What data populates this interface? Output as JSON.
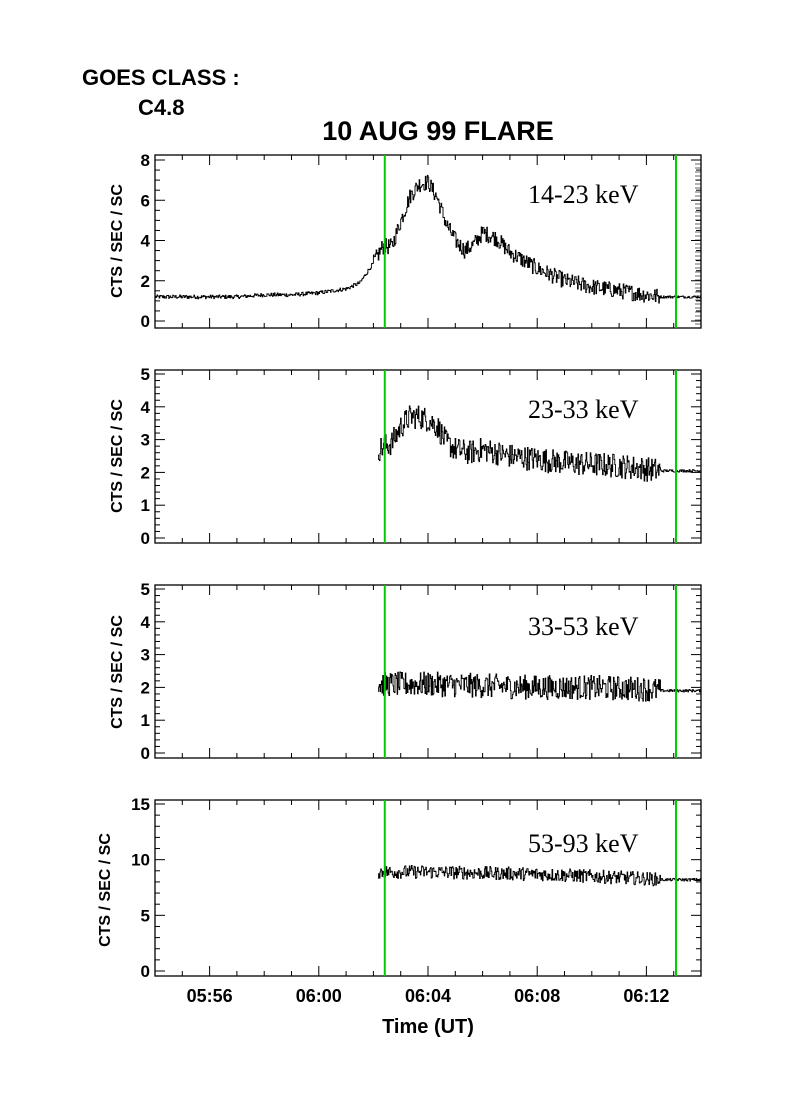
{
  "goes": {
    "label": "GOES CLASS :",
    "value": "C4.8"
  },
  "chart_data": {
    "type": "line",
    "title": "10 AUG 99 FLARE",
    "xlabel": "Time (UT)",
    "x_range": [
      "05:54:00",
      "06:14:00"
    ],
    "x_ticks": [
      "05:56",
      "06:00",
      "06:04",
      "06:08",
      "06:12"
    ],
    "markers": {
      "color": "#00cc00",
      "times": [
        "06:02:25",
        "06:13:05"
      ]
    },
    "panels": [
      {
        "ylabel": "CTS / SEC / SC",
        "ylim": [
          0,
          8
        ],
        "yticks": [
          "0",
          "2",
          "4",
          "6",
          "8"
        ],
        "band": "14-23 keV",
        "series": {
          "x": [
            "05:54:00",
            "05:55:00",
            "05:56:00",
            "05:57:00",
            "05:58:00",
            "05:59:00",
            "06:00:00",
            "06:01:00",
            "06:01:30",
            "06:02:00",
            "06:02:20",
            "06:02:40",
            "06:03:00",
            "06:03:20",
            "06:03:40",
            "06:04:00",
            "06:04:20",
            "06:04:40",
            "06:05:00",
            "06:05:20",
            "06:05:40",
            "06:06:00",
            "06:06:30",
            "06:07:00",
            "06:07:30",
            "06:08:00",
            "06:09:00",
            "06:10:00",
            "06:11:00",
            "06:12:00",
            "06:12:30",
            "06:13:00",
            "06:14:00"
          ],
          "y": [
            1.2,
            1.2,
            1.2,
            1.2,
            1.3,
            1.3,
            1.4,
            1.6,
            1.9,
            2.9,
            3.7,
            3.7,
            5.0,
            6.2,
            6.8,
            6.9,
            6.1,
            4.8,
            4.0,
            3.5,
            3.8,
            4.4,
            4.1,
            3.4,
            3.0,
            2.6,
            2.0,
            1.7,
            1.5,
            1.3,
            1.2,
            1.2,
            1.2
          ]
        }
      },
      {
        "ylabel": "CTS / SEC / SC",
        "ylim": [
          0,
          5
        ],
        "yticks": [
          "0",
          "1",
          "2",
          "3",
          "4",
          "5"
        ],
        "band": "23-33 keV",
        "series": {
          "x": [
            "06:02:10",
            "06:02:40",
            "06:03:00",
            "06:03:20",
            "06:03:40",
            "06:04:00",
            "06:04:20",
            "06:04:40",
            "06:05:00",
            "06:05:30",
            "06:06:00",
            "06:07:00",
            "06:08:00",
            "06:09:00",
            "06:10:00",
            "06:11:00",
            "06:12:00",
            "06:12:30",
            "06:13:00",
            "06:14:00"
          ],
          "y": [
            2.7,
            2.9,
            3.4,
            3.7,
            3.7,
            3.6,
            3.4,
            2.9,
            2.7,
            2.6,
            2.7,
            2.5,
            2.4,
            2.3,
            2.25,
            2.2,
            2.1,
            2.05,
            2.05,
            2.05
          ]
        }
      },
      {
        "ylabel": "CTS / SEC / SC",
        "ylim": [
          0,
          5
        ],
        "yticks": [
          "0",
          "1",
          "2",
          "3",
          "4",
          "5"
        ],
        "band": "33-53 keV",
        "series": {
          "x": [
            "06:02:10",
            "06:04:00",
            "06:06:00",
            "06:08:00",
            "06:10:00",
            "06:12:00",
            "06:12:30",
            "06:13:00",
            "06:14:00"
          ],
          "y": [
            2.1,
            2.1,
            2.05,
            2.0,
            2.0,
            1.95,
            1.9,
            1.9,
            1.9
          ]
        }
      },
      {
        "ylabel": "CTS / SEC / SC",
        "ylim": [
          0,
          15
        ],
        "yticks": [
          "0",
          "5",
          "10",
          "15"
        ],
        "band": "53-93 keV",
        "series": {
          "x": [
            "06:02:10",
            "06:04:00",
            "06:06:00",
            "06:08:00",
            "06:10:00",
            "06:12:00",
            "06:12:30",
            "06:13:00",
            "06:14:00"
          ],
          "y": [
            8.9,
            8.9,
            8.8,
            8.7,
            8.5,
            8.3,
            8.2,
            8.2,
            8.2
          ]
        }
      }
    ]
  }
}
